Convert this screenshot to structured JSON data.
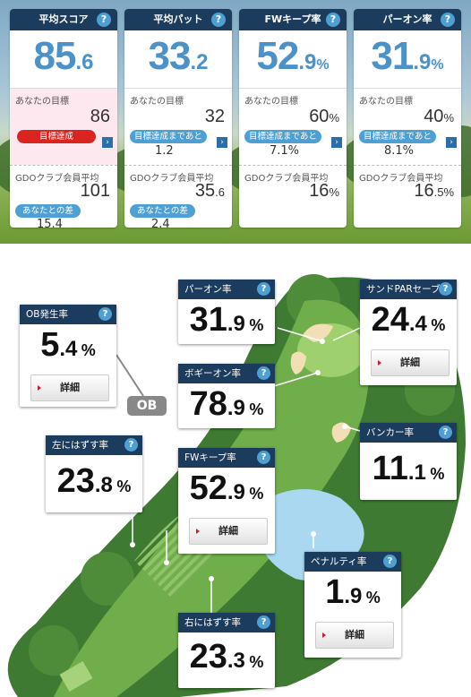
{
  "summary": [
    {
      "title": "平均スコア",
      "value_int": "85",
      "value_dec": ".6",
      "unit": "",
      "goal_label": "あなたの目標",
      "goal_value": "86",
      "goal_unit": "",
      "goal_status": "目標達成",
      "goal_status_color": "#d9241f",
      "goal_remaining": "",
      "club_label": "GDOクラブ会員平均",
      "club_value": "101",
      "club_dec": "",
      "club_unit": "",
      "diff_label": "あなたとの差",
      "diff_value": "15.4"
    },
    {
      "title": "平均パット",
      "value_int": "33",
      "value_dec": ".2",
      "unit": "",
      "goal_label": "あなたの目標",
      "goal_value": "32",
      "goal_unit": "",
      "goal_status": "目標達成まであと",
      "goal_status_color": "#4d9fd4",
      "goal_remaining": "1.2",
      "club_label": "GDOクラブ会員平均",
      "club_value": "35",
      "club_dec": ".6",
      "club_unit": "",
      "diff_label": "あなたとの差",
      "diff_value": "2.4"
    },
    {
      "title": "FWキープ率",
      "value_int": "52",
      "value_dec": ".9",
      "unit": "%",
      "goal_label": "あなたの目標",
      "goal_value": "60",
      "goal_unit": "%",
      "goal_status": "目標達成まであと",
      "goal_status_color": "#4d9fd4",
      "goal_remaining": "7.1%",
      "club_label": "GDOクラブ会員平均",
      "club_value": "16",
      "club_dec": "",
      "club_unit": "%",
      "diff_label": "",
      "diff_value": ""
    },
    {
      "title": "パーオン率",
      "value_int": "31",
      "value_dec": ".9",
      "unit": "%",
      "goal_label": "あなたの目標",
      "goal_value": "40",
      "goal_unit": "%",
      "goal_status": "目標達成まであと",
      "goal_status_color": "#4d9fd4",
      "goal_remaining": "8.1%",
      "club_label": "GDOクラブ会員平均",
      "club_value": "16",
      "club_dec": ".5",
      "club_unit": "%",
      "diff_label": "",
      "diff_value": ""
    }
  ],
  "help_icon": "?",
  "arrow_icon": "›",
  "course": {
    "ob_badge": "OB",
    "detail_label": "詳細",
    "stats": [
      {
        "key": "ob",
        "title": "OB発生率",
        "int": "5",
        "dec": ".4",
        "unit": "%",
        "detail": true
      },
      {
        "key": "paron",
        "title": "パーオン率",
        "int": "31",
        "dec": ".9",
        "unit": "%",
        "detail": false
      },
      {
        "key": "sandpar",
        "title": "サンドPARセーブ率",
        "int": "24",
        "dec": ".4",
        "unit": "%",
        "detail": true
      },
      {
        "key": "bogey",
        "title": "ボギーオン率",
        "int": "78",
        "dec": ".9",
        "unit": "%",
        "detail": false
      },
      {
        "key": "bunker",
        "title": "バンカー率",
        "int": "11",
        "dec": ".1",
        "unit": "%",
        "detail": false
      },
      {
        "key": "left",
        "title": "左にはずす率",
        "int": "23",
        "dec": ".8",
        "unit": "%",
        "detail": false
      },
      {
        "key": "fw",
        "title": "FWキープ率",
        "int": "52",
        "dec": ".9",
        "unit": "%",
        "detail": true
      },
      {
        "key": "penalty",
        "title": "ペナルティ率",
        "int": "1",
        "dec": ".9",
        "unit": "%",
        "detail": true
      },
      {
        "key": "right",
        "title": "右にはずす率",
        "int": "23",
        "dec": ".3",
        "unit": "%",
        "detail": false
      }
    ]
  }
}
